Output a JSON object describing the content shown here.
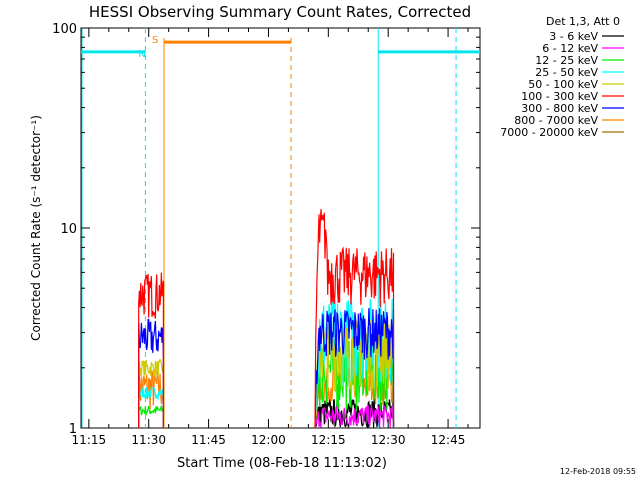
{
  "chart_data": {
    "type": "line",
    "title": "HESSI Observing Summary Count Rates, Corrected",
    "xlabel": "Start Time (08-Feb-18 11:13:02)",
    "ylabel": "Corrected Count Rate (s⁻¹ detector⁻¹)",
    "yscale": "log",
    "ylim": [
      1,
      100
    ],
    "xlim": [
      "11:13:02",
      "12:53:00"
    ],
    "x_tick_labels": [
      "11:15",
      "11:30",
      "11:45",
      "12:00",
      "12:15",
      "12:30",
      "12:45"
    ],
    "y_tick_labels": [
      "1",
      "10",
      "100"
    ],
    "legend_title": "Det 1,3, Att 0",
    "legend_placement": "right",
    "series": [
      {
        "name": "3 - 6 keV",
        "color": "#000000"
      },
      {
        "name": "6 - 12 keV",
        "color": "#ff00ff"
      },
      {
        "name": "12 - 25 keV",
        "color": "#00ee00"
      },
      {
        "name": "25 - 50 keV",
        "color": "#00ffff"
      },
      {
        "name": "50 - 100 keV",
        "color": "#cccc00"
      },
      {
        "name": "100 - 300 keV",
        "color": "#ff0000"
      },
      {
        "name": "300 - 800 keV",
        "color": "#0000ff"
      },
      {
        "name": "800 - 7000 keV",
        "color": "#ff8000"
      },
      {
        "name": "7000 - 20000 keV",
        "color": "#a07000"
      }
    ],
    "data_segments": [
      {
        "start": "11:27:30",
        "end": "11:33:40",
        "approx_range": [
          1,
          7
        ]
      },
      {
        "start": "12:11:40",
        "end": "12:31:20",
        "approx_range": [
          1,
          14
        ]
      }
    ],
    "annotations": [
      {
        "text": "N",
        "color": "#00e5ee",
        "kind": "night",
        "intervals": [
          [
            "11:13:02",
            "11:29:10"
          ],
          [
            "12:27:30",
            "12:53:00"
          ]
        ],
        "level": 76
      },
      {
        "text": "S",
        "color": "#ff8000",
        "kind": "saa",
        "intervals": [
          [
            "11:33:50",
            "12:05:40"
          ]
        ],
        "level": 85
      }
    ]
  },
  "footer": {
    "timestamp": "12-Feb-2018 09:55"
  }
}
